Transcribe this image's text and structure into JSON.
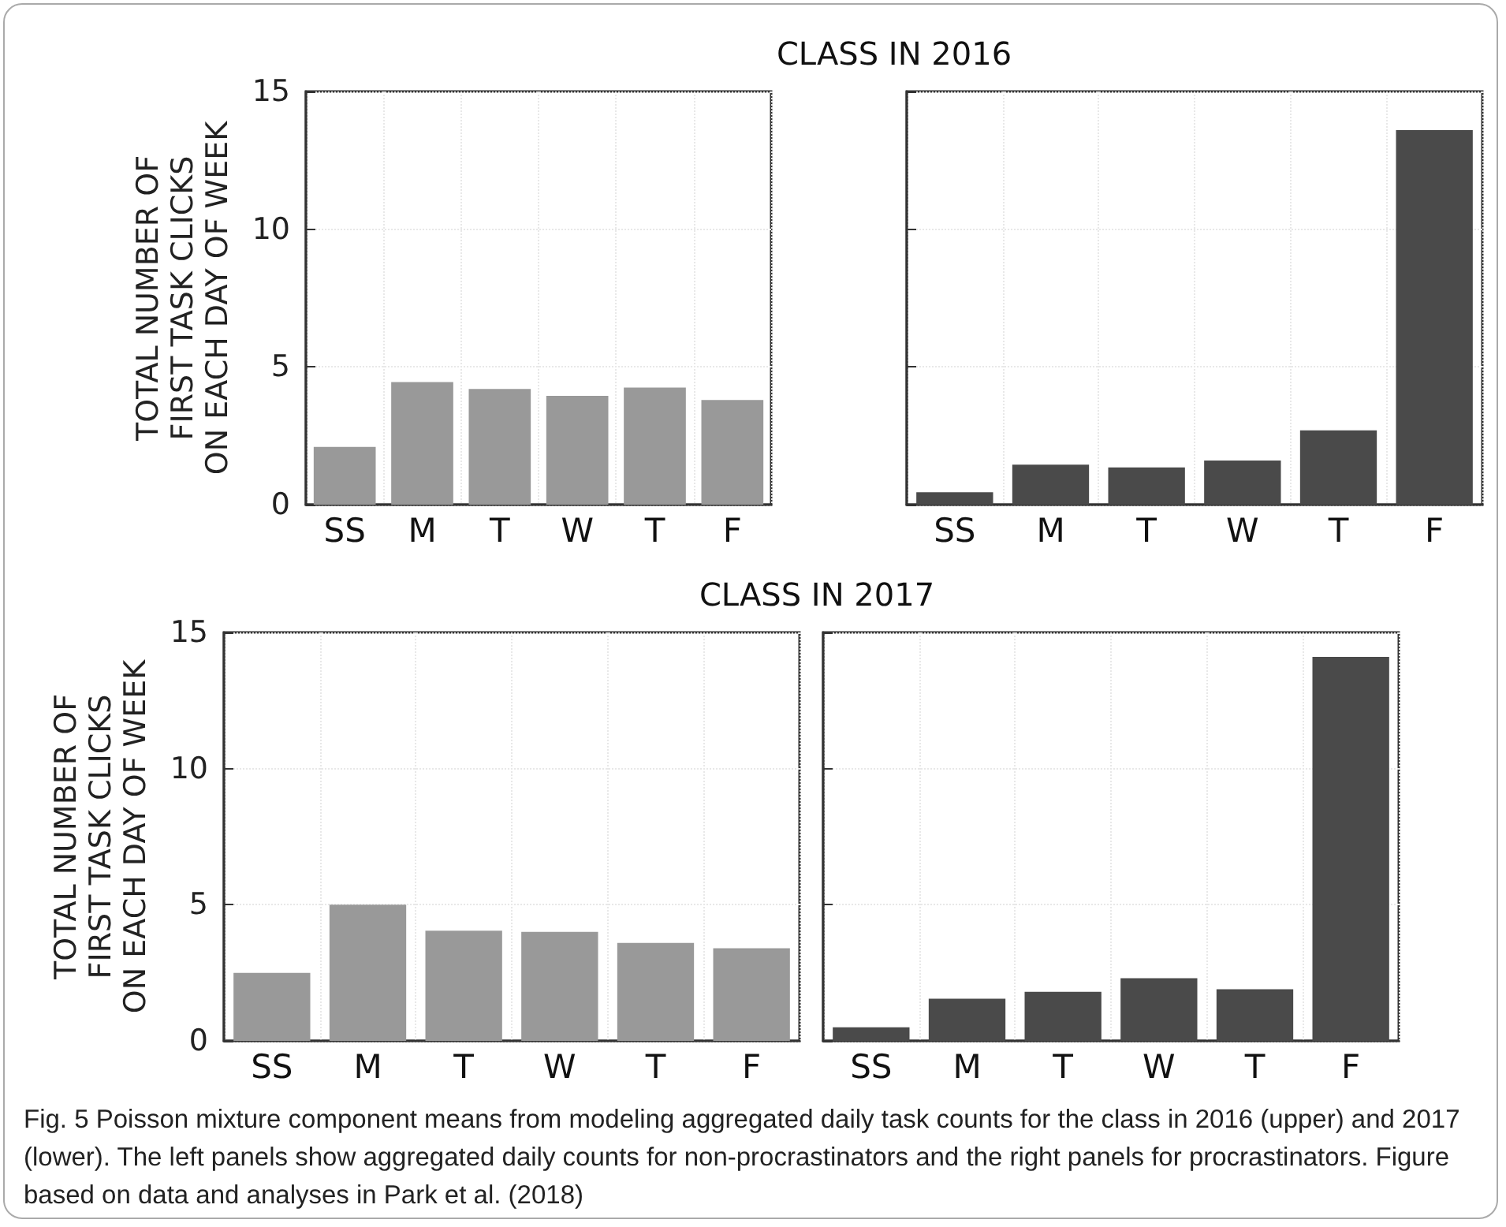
{
  "chart_data": [
    {
      "type": "bar",
      "title": "CLASS IN 2016",
      "ylabel": "TOTAL NUMBER OF\nFIRST TASK CLICKS\nON EACH DAY OF WEEK",
      "categories": [
        "SS",
        "M",
        "T",
        "W",
        "T",
        "F"
      ],
      "values": [
        2.1,
        4.45,
        4.2,
        3.95,
        4.25,
        3.8
      ],
      "color": "#999999",
      "ylim": [
        0,
        15
      ],
      "yticks": [
        0,
        5,
        10,
        15
      ],
      "grid": true
    },
    {
      "type": "bar",
      "categories": [
        "SS",
        "M",
        "T",
        "W",
        "T",
        "F"
      ],
      "values": [
        0.45,
        1.45,
        1.35,
        1.6,
        2.7,
        13.6
      ],
      "color": "#4a4a4a",
      "ylim": [
        0,
        15
      ],
      "yticks": [
        0,
        5,
        10,
        15
      ],
      "grid": true,
      "tick_labels": "x"
    },
    {
      "type": "bar",
      "title": "CLASS IN 2017",
      "ylabel": "TOTAL NUMBER OF\nFIRST TASK CLICKS\nON EACH DAY OF WEEK",
      "categories": [
        "SS",
        "M",
        "T",
        "W",
        "T",
        "F"
      ],
      "values": [
        2.5,
        5.0,
        4.05,
        4.0,
        3.6,
        3.4
      ],
      "color": "#999999",
      "ylim": [
        0,
        15
      ],
      "yticks": [
        0,
        5,
        10,
        15
      ],
      "grid": true
    },
    {
      "type": "bar",
      "categories": [
        "SS",
        "M",
        "T",
        "W",
        "T",
        "F"
      ],
      "values": [
        0.5,
        1.55,
        1.8,
        2.3,
        1.9,
        14.1
      ],
      "color": "#4a4a4a",
      "ylim": [
        0,
        15
      ],
      "yticks": [
        0,
        5,
        10,
        15
      ],
      "grid": true,
      "tick_labels": "x",
      "annotations": [
        "Fig. 5 Poisson mixture component means from modeling aggregated daily task counts for the class in 2016 (upper) and 2017 (lower). The left panels show aggregated daily counts for non-procrastinators and the right panels for procrastinators. Figure based on data and analyses in Park et al. (2018)"
      ]
    }
  ]
}
